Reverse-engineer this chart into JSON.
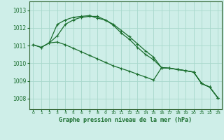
{
  "title": "Graphe pression niveau de la mer (hPa)",
  "bg_color": "#ceeee8",
  "grid_color": "#a8d8cc",
  "line_color": "#1a6e2e",
  "spine_color": "#336633",
  "x_ticks": [
    0,
    1,
    2,
    3,
    4,
    5,
    6,
    7,
    8,
    9,
    10,
    11,
    12,
    13,
    14,
    15,
    16,
    17,
    18,
    19,
    20,
    21,
    22,
    23
  ],
  "y_ticks": [
    1008,
    1009,
    1010,
    1011,
    1012,
    1013
  ],
  "ylim": [
    1007.4,
    1013.5
  ],
  "xlim": [
    -0.5,
    23.5
  ],
  "line1_x": [
    0,
    1,
    2,
    3,
    4,
    5,
    6,
    7,
    8,
    9,
    10,
    11,
    12,
    13,
    14,
    15,
    16,
    17,
    18,
    19,
    20,
    21,
    22,
    23
  ],
  "line1_y": [
    1011.05,
    1010.9,
    1011.15,
    1011.2,
    1011.05,
    1010.85,
    1010.65,
    1010.45,
    1010.25,
    1010.05,
    1009.85,
    1009.7,
    1009.55,
    1009.38,
    1009.22,
    1009.05,
    1009.75,
    1009.72,
    1009.65,
    1009.58,
    1009.5,
    1008.85,
    1008.65,
    1008.05
  ],
  "line2_x": [
    0,
    1,
    2,
    3,
    4,
    5,
    6,
    7,
    8,
    9,
    10,
    11,
    12,
    13,
    14,
    15,
    16,
    17,
    18,
    19,
    20,
    21,
    22,
    23
  ],
  "line2_y": [
    1011.05,
    1010.9,
    1011.15,
    1012.2,
    1012.45,
    1012.6,
    1012.65,
    1012.7,
    1012.55,
    1012.45,
    1012.2,
    1011.85,
    1011.5,
    1011.1,
    1010.7,
    1010.35,
    1009.75,
    1009.72,
    1009.65,
    1009.58,
    1009.5,
    1008.85,
    1008.65,
    1008.05
  ],
  "line3_x": [
    2,
    3,
    4,
    5,
    6,
    7,
    8,
    9,
    10,
    11,
    12,
    13,
    14,
    15,
    16,
    17,
    18,
    19,
    20,
    21,
    22,
    23
  ],
  "line3_y": [
    1011.15,
    1011.55,
    1012.2,
    1012.45,
    1012.6,
    1012.65,
    1012.65,
    1012.45,
    1012.15,
    1011.7,
    1011.35,
    1010.9,
    1010.5,
    1010.2,
    1009.75,
    1009.72,
    1009.65,
    1009.58,
    1009.5,
    1008.85,
    1008.65,
    1008.05
  ]
}
